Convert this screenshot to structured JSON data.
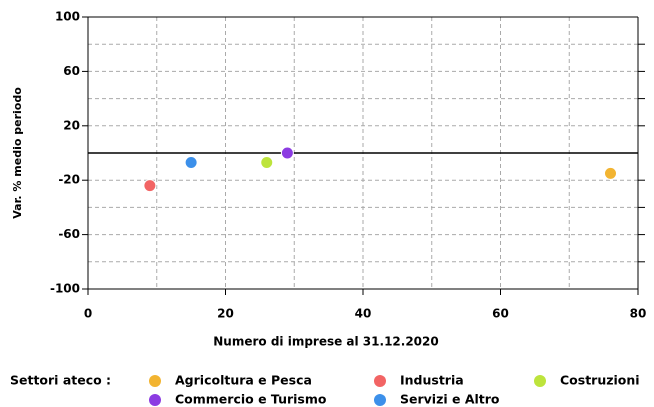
{
  "chart_data": {
    "type": "scatter",
    "xlabel": "Numero di imprese al 31.12.2020",
    "ylabel": "Var. % medio periodo",
    "legend_title": "Settori ateco :",
    "xlim": [
      0,
      80
    ],
    "xticks": [
      0,
      20,
      40,
      60,
      80
    ],
    "xgrid": [
      10,
      20,
      30,
      40,
      50,
      60,
      70
    ],
    "ylim": [
      -100,
      100
    ],
    "yticks": [
      -100,
      -60,
      -20,
      20,
      60,
      100
    ],
    "ygrid": [
      -80,
      -60,
      -40,
      -20,
      20,
      40,
      60,
      80
    ],
    "grid": true,
    "legend": "bottom",
    "series": [
      {
        "name": "Agricoltura e Pesca",
        "color": "#f2b431",
        "x": [
          76
        ],
        "values": [
          -15
        ]
      },
      {
        "name": "Industria",
        "color": "#f26464",
        "x": [
          9
        ],
        "values": [
          -24
        ]
      },
      {
        "name": "Costruzioni",
        "color": "#bde43c",
        "x": [
          26
        ],
        "values": [
          -7
        ]
      },
      {
        "name": "Commercio e Turismo",
        "color": "#8c3ce2",
        "x": [
          29
        ],
        "values": [
          0
        ]
      },
      {
        "name": "Servizi e Altro",
        "color": "#3c90ea",
        "x": [
          15
        ],
        "values": [
          -7
        ]
      }
    ]
  }
}
